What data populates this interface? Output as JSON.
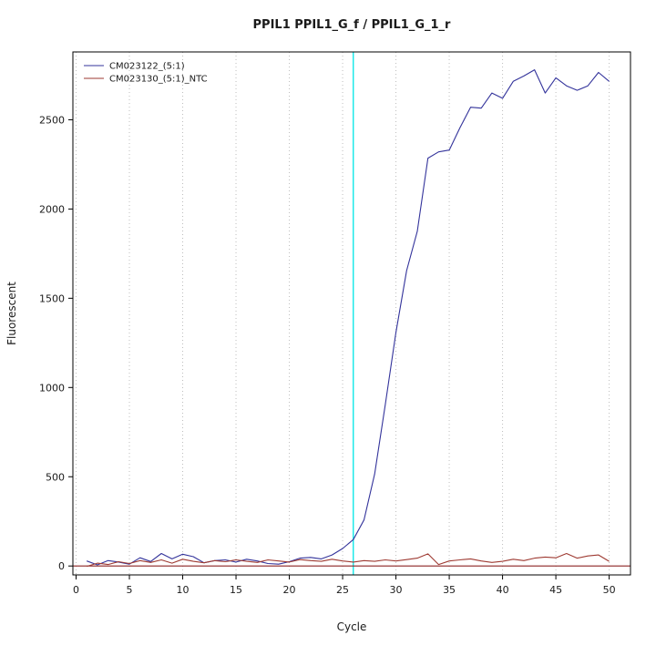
{
  "page": {
    "background": "#ffffff"
  },
  "chart_data": {
    "type": "line",
    "title": "PPIL1  PPIL1_G_f / PPIL1_G_1_r",
    "xlabel": "Cycle",
    "ylabel": "Fluorescent",
    "xlim": [
      -0.3,
      52
    ],
    "ylim": [
      -50,
      2880
    ],
    "x_ticks": [
      0,
      5,
      10,
      15,
      20,
      25,
      30,
      35,
      40,
      45,
      50
    ],
    "y_ticks": [
      0,
      500,
      1000,
      1500,
      2000,
      2500
    ],
    "grid": "vertical-dotted",
    "legend_position": "top-left",
    "threshold_cycle": 26,
    "baseline_value": 0,
    "colors": {
      "threshold_cycle_line": "#00e5e5",
      "baseline_line": "#8b2323",
      "grid": "#bdbdbd",
      "frame": "#000000"
    },
    "x": [
      1,
      2,
      3,
      4,
      5,
      6,
      7,
      8,
      9,
      10,
      11,
      12,
      13,
      14,
      15,
      16,
      17,
      18,
      19,
      20,
      21,
      22,
      23,
      24,
      25,
      26,
      27,
      28,
      29,
      30,
      31,
      32,
      33,
      34,
      35,
      36,
      37,
      38,
      39,
      40,
      41,
      42,
      43,
      44,
      45,
      46,
      47,
      48,
      49,
      50
    ],
    "series": [
      {
        "name": "CM023122_(5:1)",
        "color": "#33339b",
        "values": [
          28,
          6,
          30,
          22,
          10,
          46,
          25,
          70,
          40,
          66,
          52,
          18,
          30,
          34,
          22,
          38,
          28,
          14,
          10,
          24,
          44,
          48,
          40,
          62,
          98,
          148,
          258,
          515,
          905,
          1310,
          1655,
          1875,
          2285,
          2320,
          2330,
          2455,
          2570,
          2565,
          2650,
          2620,
          2715,
          2745,
          2780,
          2650,
          2735,
          2690,
          2665,
          2690,
          2765,
          2715
        ]
      },
      {
        "name": "CM023130_(5:1)_NTC",
        "color": "#9e3a32",
        "values": [
          -2,
          16,
          8,
          24,
          14,
          30,
          20,
          34,
          16,
          38,
          26,
          18,
          30,
          24,
          34,
          26,
          20,
          34,
          28,
          22,
          36,
          30,
          26,
          38,
          28,
          22,
          30,
          26,
          34,
          28,
          36,
          44,
          68,
          8,
          28,
          34,
          40,
          28,
          20,
          26,
          38,
          30,
          44,
          50,
          46,
          70,
          44,
          56,
          62,
          26
        ]
      }
    ]
  }
}
